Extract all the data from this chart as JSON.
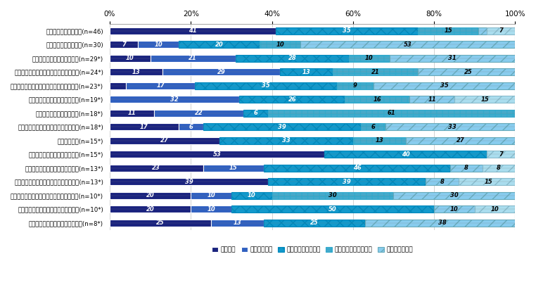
{
  "categories": [
    "自助グループへの参加(n=46)",
    "民事損害賠償請求制度(n=30)",
    "刑事裁判における意見降述等(n=29*)",
    "公判期日、裁判結果等に関する情報提供(n=24*)",
    "公判記録の閲覧・コピー（確定後も含む）(n=23*)",
    "優先的に裁判を傍聴できる制度(n=19*)",
    "加害者に関する情報の提供(n=18*)",
    "冒頭陸述の内容を記載した書面の交付(n=18*)",
    "医療保険制度(n=15*)",
    "警察、病院、公判への付き添い(n=15*)",
    "休暇の取得など職場における配慮(n=13*)",
    "民間団体等による関係機関・団体の紹介(n=13*)",
    "「被害者ホットライン」による問い合わせ(n=10*)",
    "司法制度や行政手続の説明、手続補助(n=10*)",
    "「被害者の手引」による情報提供(n=8*)"
  ],
  "data": [
    [
      41,
      0,
      35,
      15,
      2,
      7
    ],
    [
      7,
      10,
      20,
      10,
      53,
      0
    ],
    [
      10,
      21,
      28,
      10,
      31,
      0
    ],
    [
      13,
      29,
      13,
      21,
      25,
      0
    ],
    [
      4,
      17,
      35,
      9,
      35,
      0
    ],
    [
      0,
      32,
      26,
      16,
      11,
      15
    ],
    [
      11,
      22,
      6,
      61,
      0,
      0
    ],
    [
      17,
      6,
      39,
      6,
      33,
      0
    ],
    [
      27,
      0,
      33,
      13,
      27,
      0
    ],
    [
      53,
      0,
      40,
      0,
      0,
      7
    ],
    [
      23,
      15,
      46,
      0,
      8,
      8
    ],
    [
      39,
      0,
      39,
      0,
      8,
      15
    ],
    [
      20,
      10,
      10,
      30,
      30,
      0
    ],
    [
      20,
      10,
      50,
      0,
      10,
      10
    ],
    [
      25,
      13,
      25,
      0,
      38,
      0
    ]
  ],
  "seg_colors": [
    "#1a237e",
    "#3d5abf",
    "#00aadd",
    "#88ccee",
    "#aaddee",
    "#cceeee"
  ],
  "legend_labels": [
    "満足した",
    "やや満足した",
    "どちらともいえない",
    "あまり満足しなかった",
    "満足しなかった"
  ],
  "legend_colors": [
    "#1a237e",
    "#3d5abf",
    "#00aadd",
    "#88ccee",
    "#aaddee"
  ],
  "figsize": [
    7.62,
    4.05
  ],
  "dpi": 100
}
